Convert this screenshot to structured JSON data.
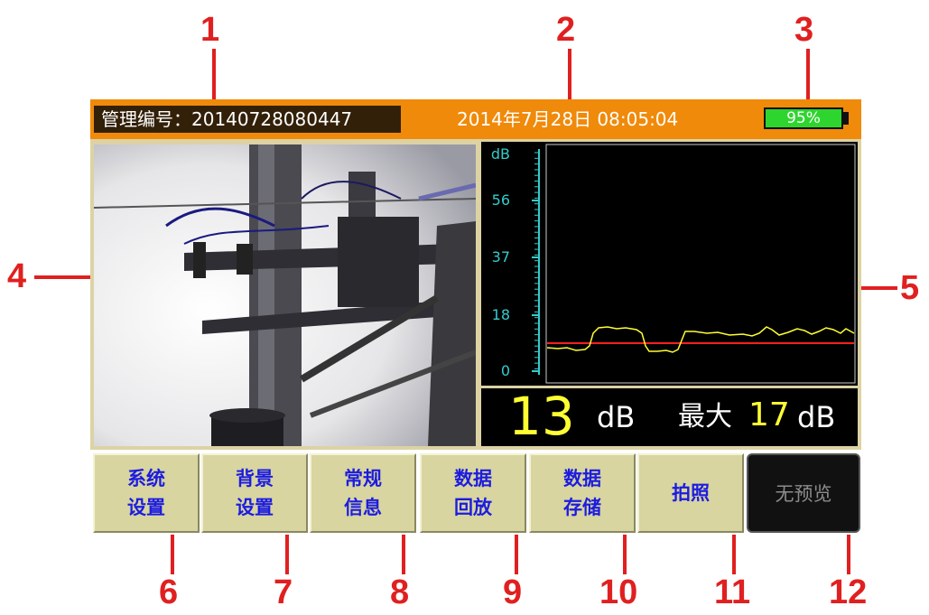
{
  "header": {
    "id_label": "管理编号：",
    "id_value": "20140728080447",
    "datetime": "2014年7月28日  08:05:04",
    "battery": "95%"
  },
  "graph": {
    "y_unit": "dB",
    "y_ticks": [
      "56",
      "37",
      "18",
      "0"
    ],
    "trace_color": "#ffff33",
    "threshold_color": "#ff2020",
    "axis_color": "#33cccc"
  },
  "readout": {
    "current_value": "13",
    "current_unit": "dB",
    "max_label": "最大",
    "max_value": "17",
    "max_unit": "dB"
  },
  "buttons": [
    {
      "line1": "系统",
      "line2": "设置"
    },
    {
      "line1": "背景",
      "line2": "设置"
    },
    {
      "line1": "常规",
      "line2": "信息"
    },
    {
      "line1": "数据",
      "line2": "回放"
    },
    {
      "line1": "数据",
      "line2": "存储"
    },
    {
      "line1": "拍照",
      "line2": ""
    }
  ],
  "preview_button": "无预览",
  "callouts": [
    "1",
    "2",
    "3",
    "4",
    "5",
    "6",
    "7",
    "8",
    "9",
    "10",
    "11",
    "12"
  ]
}
